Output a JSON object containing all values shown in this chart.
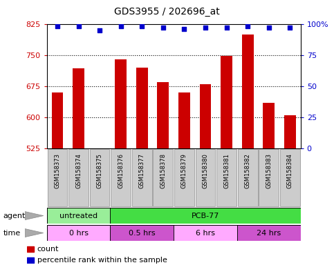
{
  "title": "GDS3955 / 202696_at",
  "samples": [
    "GSM158373",
    "GSM158374",
    "GSM158375",
    "GSM158376",
    "GSM158377",
    "GSM158378",
    "GSM158379",
    "GSM158380",
    "GSM158381",
    "GSM158382",
    "GSM158383",
    "GSM158384"
  ],
  "bar_values": [
    660,
    718,
    522,
    740,
    720,
    685,
    660,
    680,
    748,
    800,
    635,
    605
  ],
  "percentile_values": [
    98,
    98,
    95,
    98,
    98,
    97,
    96,
    97,
    97,
    98,
    97,
    97
  ],
  "bar_color": "#cc0000",
  "dot_color": "#0000cc",
  "ylim_left": [
    525,
    825
  ],
  "ylim_right": [
    0,
    100
  ],
  "yticks_left": [
    525,
    600,
    675,
    750,
    825
  ],
  "yticks_right": [
    0,
    25,
    50,
    75,
    100
  ],
  "ytick_labels_right": [
    "0",
    "25",
    "50",
    "75",
    "100%"
  ],
  "dotted_lines": [
    600,
    675,
    750
  ],
  "agent_groups": [
    {
      "label": "untreated",
      "start": 0,
      "end": 3,
      "color": "#99ee99"
    },
    {
      "label": "PCB-77",
      "start": 3,
      "end": 12,
      "color": "#44dd44"
    }
  ],
  "time_groups": [
    {
      "label": "0 hrs",
      "start": 0,
      "end": 3,
      "color": "#ffaaff"
    },
    {
      "label": "0.5 hrs",
      "start": 3,
      "end": 6,
      "color": "#cc55cc"
    },
    {
      "label": "6 hrs",
      "start": 6,
      "end": 9,
      "color": "#ffaaff"
    },
    {
      "label": "24 hrs",
      "start": 9,
      "end": 12,
      "color": "#cc55cc"
    }
  ],
  "legend_count_color": "#cc0000",
  "legend_dot_color": "#0000cc",
  "bg_color": "#ffffff",
  "tick_label_color_left": "#cc0000",
  "tick_label_color_right": "#0000cc",
  "bar_width": 0.55,
  "xticklabel_bg": "#cccccc",
  "xticklabel_border": "#888888"
}
